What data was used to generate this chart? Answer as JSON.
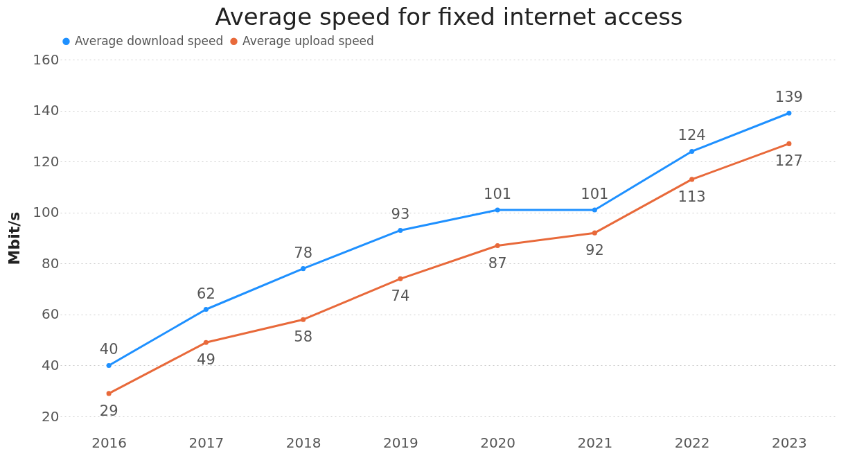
{
  "chart_data": {
    "type": "line",
    "title": "Average speed for fixed internet access",
    "ylabel": "Mbit/s",
    "categories": [
      "2016",
      "2017",
      "2018",
      "2019",
      "2020",
      "2021",
      "2022",
      "2023"
    ],
    "series": [
      {
        "name": "Average download speed",
        "color": "#1e90ff",
        "values": [
          40,
          62,
          78,
          93,
          101,
          101,
          124,
          139
        ]
      },
      {
        "name": "Average upload speed",
        "color": "#e8693a",
        "values": [
          29,
          49,
          58,
          74,
          87,
          92,
          113,
          127
        ]
      }
    ],
    "ylim": [
      20,
      160
    ],
    "yticks": [
      20,
      40,
      60,
      80,
      100,
      120,
      140,
      160
    ],
    "grid": "y",
    "legend": "top",
    "marker": "circle",
    "line_style": "solid",
    "data_labels": true
  }
}
